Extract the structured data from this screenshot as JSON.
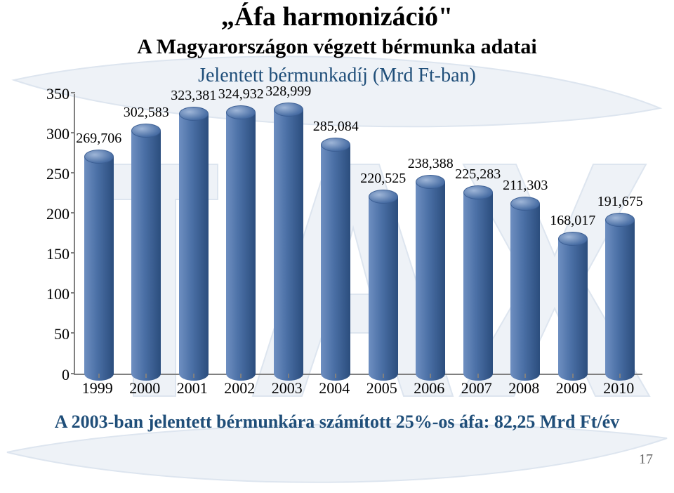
{
  "title": "„Áfa harmonizáció\"",
  "subtitle": "A Magyarországon végzett bérmunka adatai",
  "chart": {
    "type": "bar",
    "title": "Jelentett bérmunkadíj (Mrd Ft-ban)",
    "title_color": "#1f4e79",
    "title_fontsize": 28,
    "categories": [
      "1999",
      "2000",
      "2001",
      "2002",
      "2003",
      "2004",
      "2005",
      "2006",
      "2007",
      "2008",
      "2009",
      "2010"
    ],
    "values": [
      269.706,
      302.583,
      323.381,
      324.932,
      328.999,
      285.084,
      220.525,
      238.388,
      225.283,
      211.303,
      168.017,
      191.675
    ],
    "value_labels": [
      "269,706",
      "302,583",
      "323,381",
      "324,932",
      "328,999",
      "285,084",
      "220,525",
      "238,388",
      "225,283",
      "211,303",
      "168,017",
      "191,675"
    ],
    "ymin": 0,
    "ymax": 350,
    "ytick_step": 50,
    "ytick_labels": [
      "0",
      "50",
      "100",
      "150",
      "200",
      "250",
      "300",
      "350"
    ],
    "bar_fill_left": "#6e8fc1",
    "bar_fill_mid": "#4a6fa5",
    "bar_fill_right": "#2b4d7d",
    "bar_top_light": "#9fb6d8",
    "bar_top_edge": "#3c5f94",
    "axis_color": "#808080",
    "label_fontsize": 22,
    "value_label_fontsize": 20,
    "background_color": "#ffffff",
    "bar_width_ratio": 0.62
  },
  "footer_text": "A 2003-ban jelentett bérmunkára számított 25%-os áfa: 82,25 Mrd Ft/év",
  "footer_color": "#1f4e79",
  "page_number": "17",
  "watermark": {
    "fill": "#eef2f7",
    "stroke": "#dde5ef"
  }
}
